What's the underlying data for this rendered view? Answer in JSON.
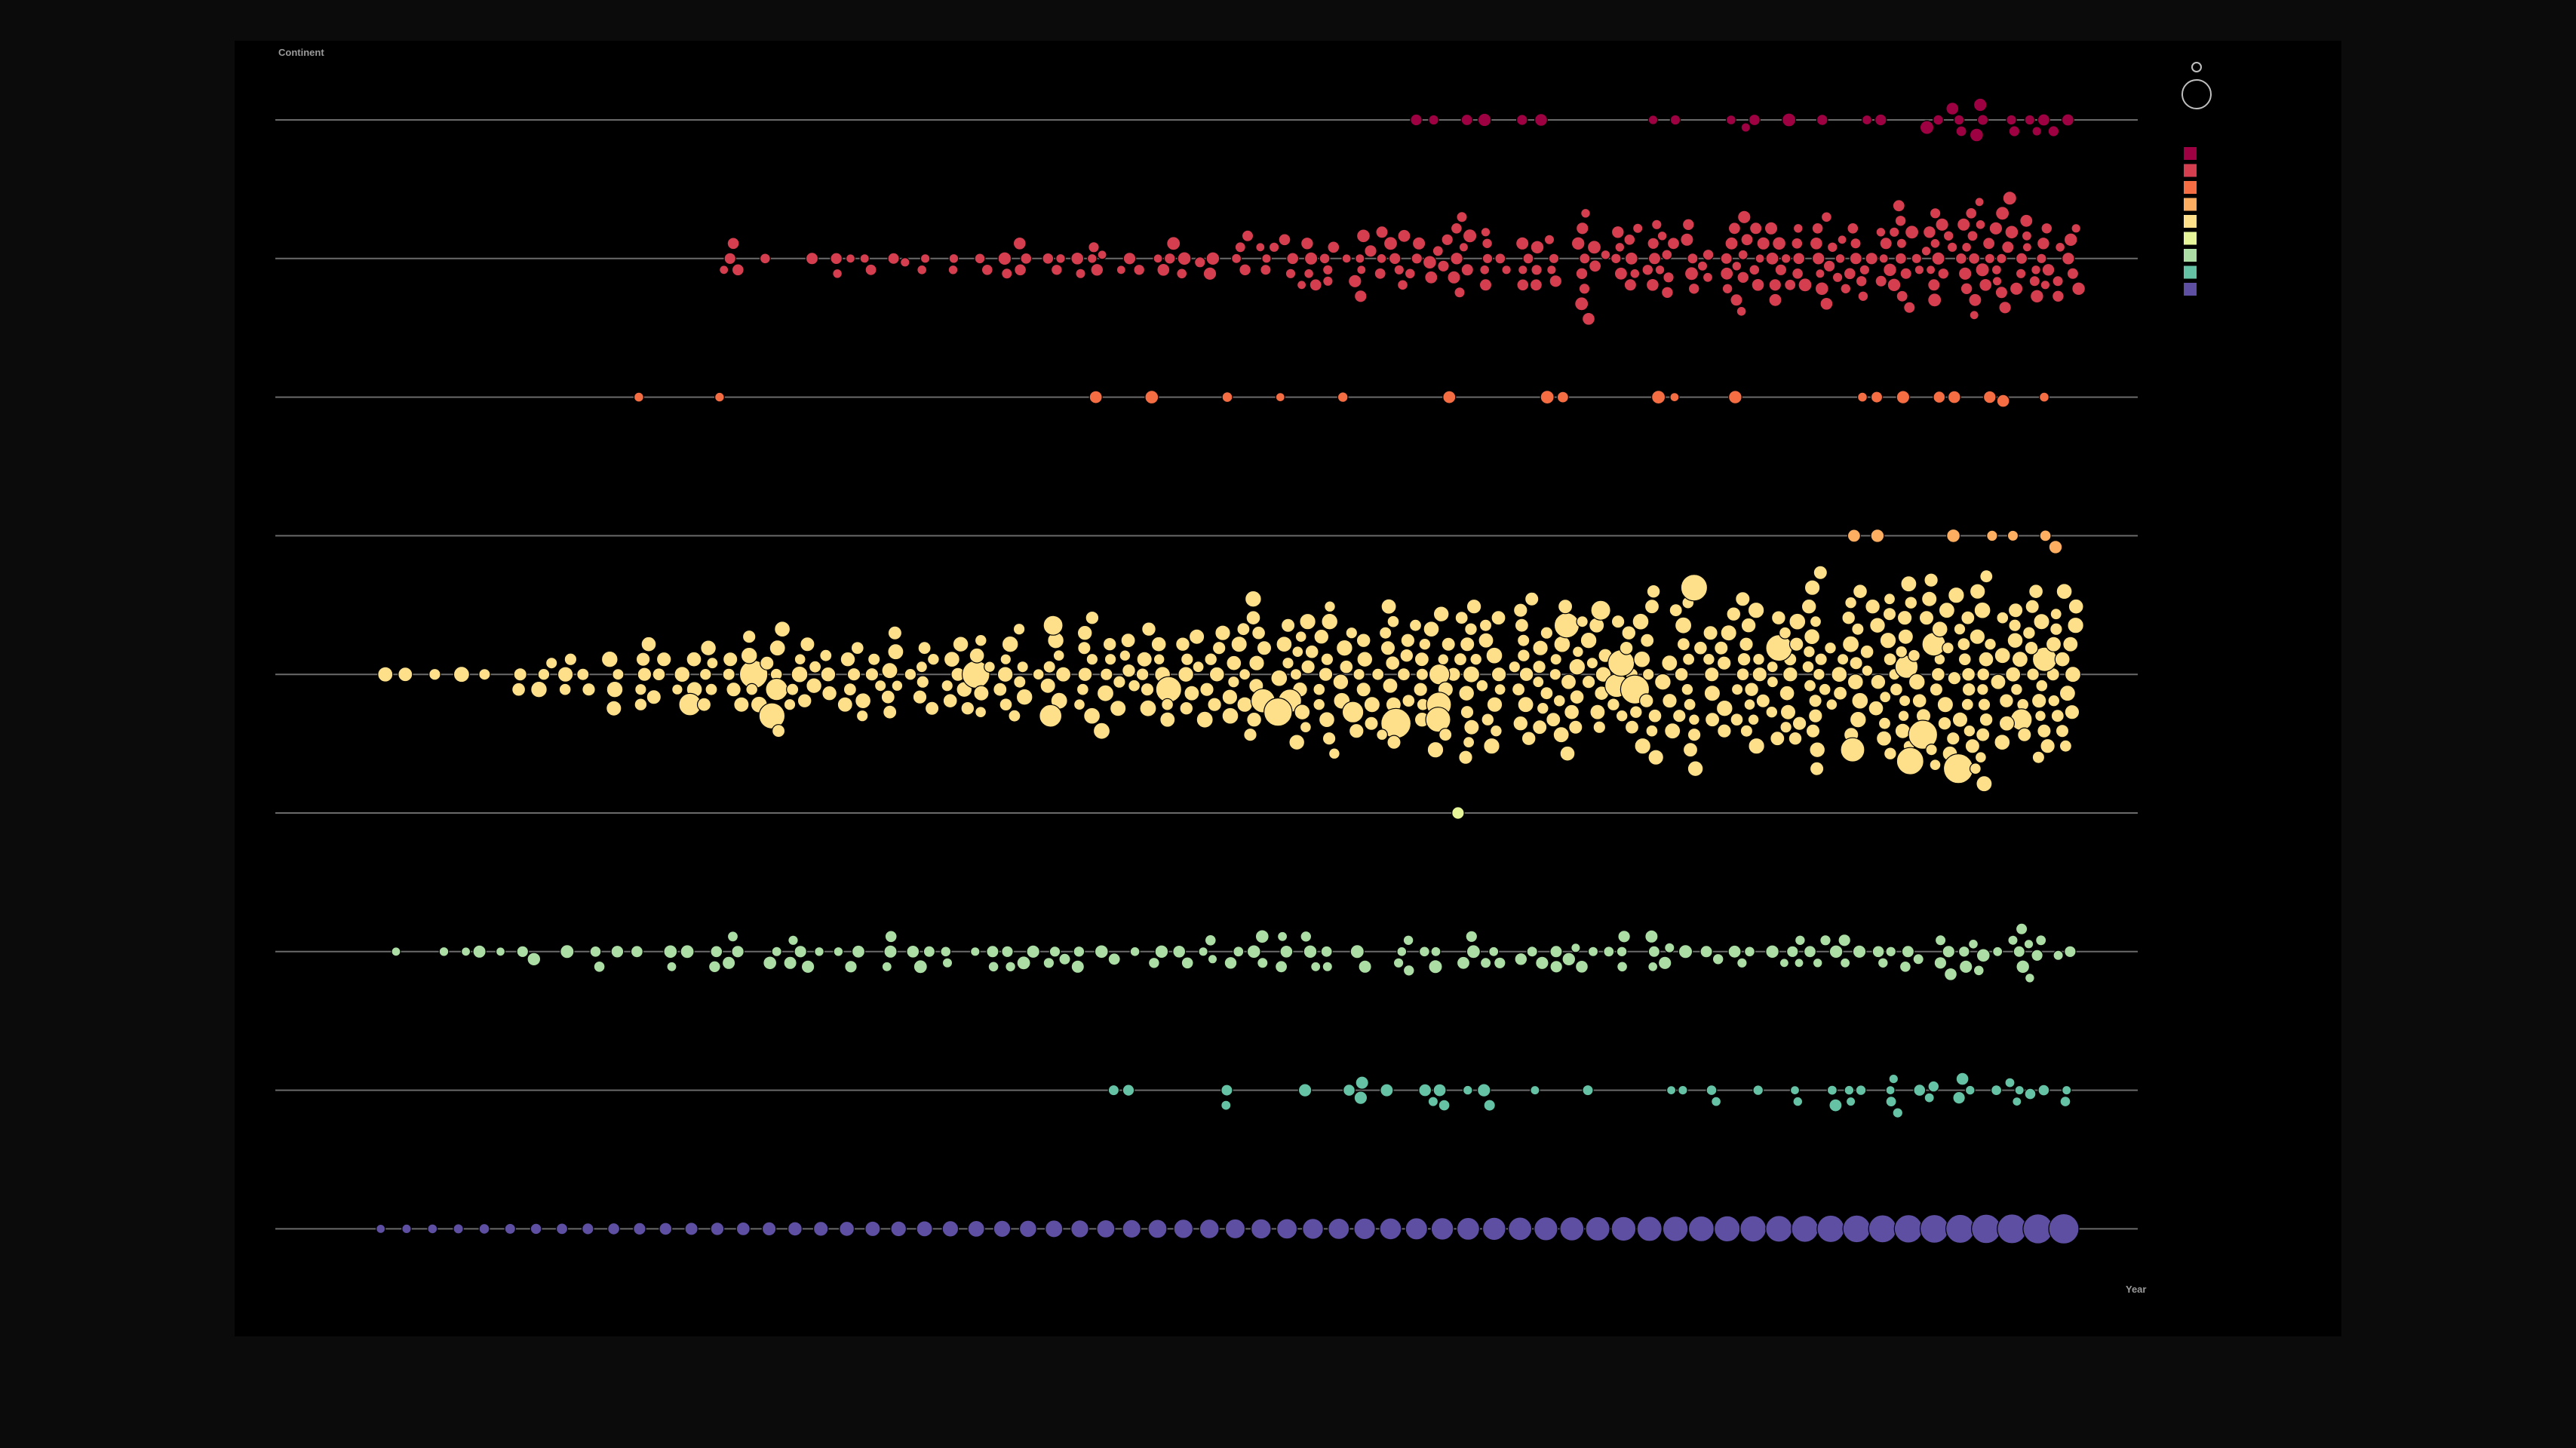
{
  "chart_data": {
    "type": "beeswarm",
    "title": "",
    "ylabel": "Continent",
    "xlabel": "Year",
    "x_range": [
      0,
      67
    ],
    "grid": false,
    "legend_position": "top-right",
    "size_legend_count": 2,
    "rows": [
      {
        "index": 0,
        "color": "#9e0142",
        "markers": [
          42,
          43,
          44,
          45,
          46,
          47,
          51,
          52,
          54,
          55,
          55,
          56,
          58,
          59,
          60,
          62,
          62,
          63,
          63,
          63,
          64,
          64,
          64,
          65,
          65,
          66,
          66,
          66,
          67,
          67
        ]
      },
      {
        "index": 1,
        "color": "#d53e4f",
        "density": [
          [
            15,
            2
          ],
          [
            16,
            2
          ],
          [
            17,
            1
          ],
          [
            19,
            2
          ],
          [
            20,
            2
          ],
          [
            21,
            2
          ],
          [
            22,
            2
          ],
          [
            23,
            2
          ],
          [
            24,
            2
          ],
          [
            25,
            2
          ],
          [
            26,
            2
          ],
          [
            27,
            3
          ],
          [
            28,
            3
          ],
          [
            29,
            3
          ],
          [
            30,
            3
          ],
          [
            31,
            3
          ],
          [
            32,
            3
          ],
          [
            33,
            3
          ],
          [
            34,
            3
          ],
          [
            35,
            3
          ],
          [
            36,
            4
          ],
          [
            37,
            4
          ],
          [
            38,
            5
          ],
          [
            39,
            5
          ],
          [
            40,
            6
          ],
          [
            41,
            6
          ],
          [
            42,
            6
          ],
          [
            43,
            6
          ],
          [
            44,
            6
          ],
          [
            45,
            6
          ],
          [
            46,
            6
          ],
          [
            47,
            6
          ],
          [
            48,
            6
          ],
          [
            49,
            6
          ],
          [
            50,
            6
          ],
          [
            51,
            7
          ],
          [
            52,
            7
          ],
          [
            53,
            7
          ],
          [
            54,
            8
          ],
          [
            55,
            8
          ],
          [
            56,
            8
          ],
          [
            57,
            8
          ],
          [
            58,
            9
          ],
          [
            59,
            9
          ],
          [
            60,
            9
          ],
          [
            61,
            9
          ],
          [
            62,
            10
          ],
          [
            63,
            10
          ],
          [
            64,
            11
          ],
          [
            65,
            10
          ],
          [
            66,
            10
          ],
          [
            67,
            9
          ]
        ]
      },
      {
        "index": 2,
        "color": "#f46d43",
        "markers": [
          12,
          15,
          30,
          32,
          35,
          37,
          39,
          43,
          47,
          48,
          51,
          52,
          54,
          59,
          60,
          61,
          62,
          63,
          64,
          65,
          66
        ]
      },
      {
        "index": 3,
        "color": "#fdae61",
        "markers": [
          59,
          60,
          63,
          64,
          65,
          66,
          67
        ]
      },
      {
        "index": 4,
        "color": "#fee08b",
        "density": [
          [
            2,
            1
          ],
          [
            3,
            1
          ],
          [
            4,
            1
          ],
          [
            5,
            1
          ],
          [
            6,
            1
          ],
          [
            7,
            2
          ],
          [
            8,
            2
          ],
          [
            9,
            3
          ],
          [
            10,
            3
          ],
          [
            11,
            4
          ],
          [
            12,
            4
          ],
          [
            13,
            5
          ],
          [
            14,
            5
          ],
          [
            15,
            6
          ],
          [
            16,
            6
          ],
          [
            17,
            6
          ],
          [
            18,
            6
          ],
          [
            19,
            6
          ],
          [
            20,
            6
          ],
          [
            21,
            6
          ],
          [
            22,
            6
          ],
          [
            23,
            6
          ],
          [
            24,
            6
          ],
          [
            25,
            6
          ],
          [
            26,
            6
          ],
          [
            27,
            6
          ],
          [
            28,
            7
          ],
          [
            29,
            7
          ],
          [
            30,
            7
          ],
          [
            31,
            7
          ],
          [
            32,
            7
          ],
          [
            33,
            8
          ],
          [
            34,
            8
          ],
          [
            35,
            9
          ],
          [
            36,
            9
          ],
          [
            37,
            10
          ],
          [
            38,
            10
          ],
          [
            39,
            10
          ],
          [
            40,
            10
          ],
          [
            41,
            11
          ],
          [
            42,
            11
          ],
          [
            43,
            11
          ],
          [
            44,
            11
          ],
          [
            45,
            11
          ],
          [
            46,
            11
          ],
          [
            47,
            11
          ],
          [
            48,
            11
          ],
          [
            49,
            11
          ],
          [
            50,
            11
          ],
          [
            51,
            11
          ],
          [
            52,
            11
          ],
          [
            53,
            11
          ],
          [
            54,
            12
          ],
          [
            55,
            12
          ],
          [
            56,
            12
          ],
          [
            57,
            12
          ],
          [
            58,
            13
          ],
          [
            59,
            13
          ],
          [
            60,
            14
          ],
          [
            61,
            14
          ],
          [
            62,
            15
          ],
          [
            63,
            15
          ],
          [
            64,
            15
          ],
          [
            65,
            15
          ],
          [
            66,
            15
          ],
          [
            67,
            14
          ]
        ]
      },
      {
        "index": 5,
        "color": "#e6f598",
        "markers": [
          44
        ]
      },
      {
        "index": 6,
        "color": "#abdda4",
        "density": [
          [
            3,
            1
          ],
          [
            4,
            1
          ],
          [
            5,
            1
          ],
          [
            6,
            1
          ],
          [
            7,
            2
          ],
          [
            8,
            1
          ],
          [
            9,
            1
          ],
          [
            10,
            2
          ],
          [
            11,
            1
          ],
          [
            12,
            1
          ],
          [
            13,
            2
          ],
          [
            14,
            1
          ],
          [
            15,
            2
          ],
          [
            16,
            3
          ],
          [
            17,
            2
          ],
          [
            18,
            3
          ],
          [
            19,
            2
          ],
          [
            20,
            3
          ],
          [
            21,
            2
          ],
          [
            22,
            2
          ],
          [
            23,
            2
          ],
          [
            24,
            2
          ],
          [
            25,
            1
          ],
          [
            26,
            3
          ],
          [
            27,
            3
          ],
          [
            28,
            3
          ],
          [
            29,
            2
          ],
          [
            30,
            1
          ],
          [
            31,
            2
          ],
          [
            32,
            2
          ],
          [
            33,
            2
          ],
          [
            34,
            3
          ],
          [
            35,
            3
          ],
          [
            36,
            2
          ],
          [
            37,
            3
          ],
          [
            38,
            3
          ],
          [
            39,
            2
          ],
          [
            40,
            2
          ],
          [
            41,
            3
          ],
          [
            42,
            2
          ],
          [
            43,
            2
          ],
          [
            44,
            3
          ],
          [
            45,
            3
          ],
          [
            46,
            2
          ],
          [
            47,
            3
          ],
          [
            48,
            3
          ],
          [
            49,
            2
          ],
          [
            50,
            3
          ],
          [
            51,
            3
          ],
          [
            52,
            2
          ],
          [
            53,
            2
          ],
          [
            54,
            2
          ],
          [
            55,
            2
          ],
          [
            56,
            3
          ],
          [
            57,
            3
          ],
          [
            58,
            3
          ],
          [
            59,
            3
          ],
          [
            60,
            3
          ],
          [
            61,
            3
          ],
          [
            62,
            3
          ],
          [
            63,
            3
          ],
          [
            64,
            4
          ],
          [
            65,
            4
          ],
          [
            66,
            4
          ],
          [
            67,
            2
          ]
        ]
      },
      {
        "index": 7,
        "color": "#66c2a5",
        "markers": [
          30,
          31,
          35,
          35,
          38,
          39,
          40,
          40,
          41,
          42,
          43,
          43,
          43,
          44,
          45,
          45,
          47,
          49,
          52,
          52,
          53,
          54,
          55,
          57,
          57,
          58,
          58,
          59,
          59,
          59,
          60,
          60,
          60,
          61,
          61,
          62,
          62,
          63,
          63,
          63,
          64,
          65,
          65,
          65,
          66,
          66,
          67,
          67
        ]
      },
      {
        "index": 8,
        "color": "#5e4fa2",
        "markers": [
          2,
          3,
          4,
          5,
          6,
          7,
          8,
          9,
          10,
          11,
          12,
          13,
          14,
          15,
          16,
          17,
          18,
          19,
          20,
          21,
          22,
          23,
          24,
          25,
          26,
          27,
          28,
          29,
          30,
          31,
          32,
          33,
          34,
          35,
          36,
          37,
          38,
          39,
          40,
          41,
          42,
          43,
          44,
          45,
          46,
          47,
          48,
          49,
          50,
          51,
          52,
          53,
          54,
          55,
          56,
          57,
          58,
          59,
          60,
          61,
          62,
          63,
          64,
          65,
          66,
          67
        ]
      }
    ],
    "legend_colors": [
      "#9e0142",
      "#d53e4f",
      "#f46d43",
      "#fdae61",
      "#fee08b",
      "#e6f598",
      "#abdda4",
      "#66c2a5",
      "#5e4fa2"
    ]
  }
}
